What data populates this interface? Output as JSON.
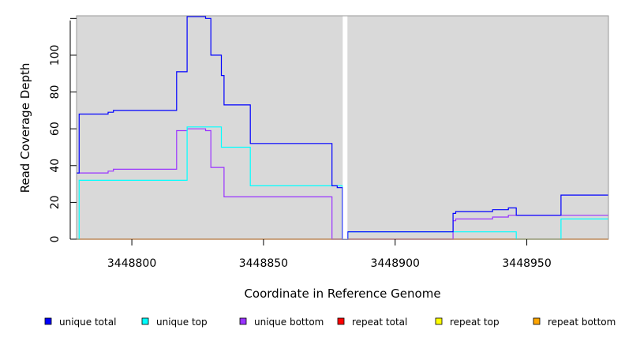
{
  "chart_data": {
    "type": "line",
    "title": "",
    "xlabel": "Coordinate in Reference Genome",
    "ylabel": "Read Coverage Depth",
    "xlim": [
      3448779,
      3448981
    ],
    "ylim": [
      0,
      121
    ],
    "x_ticks": [
      3448800,
      3448850,
      3448900,
      3448950
    ],
    "x_tick_labels": [
      "3448800",
      "3448850",
      "3448900",
      "3448950"
    ],
    "y_ticks": [
      0,
      20,
      40,
      60,
      80,
      100
    ],
    "y_tick_labels": [
      "0",
      "20",
      "40",
      "60",
      "80",
      "100"
    ],
    "gap_marker": 3448881,
    "grid": false,
    "legend_position": "bottom",
    "colors": {
      "background": "#d9d9d9",
      "unique_total": "#0000ff",
      "unique_top": "#00ffff",
      "unique_bottom": "#9933ff",
      "repeat_total": "#ff0000",
      "repeat_top": "#ffff00",
      "repeat_bottom": "#ffa500"
    },
    "series": [
      {
        "name": "unique total",
        "color": "#0000ff",
        "x": [
          3448779,
          3448780,
          3448780,
          3448791,
          3448791,
          3448793,
          3448793,
          3448796,
          3448796,
          3448817,
          3448817,
          3448821,
          3448821,
          3448828,
          3448828,
          3448830,
          3448830,
          3448834,
          3448834,
          3448835,
          3448835,
          3448845,
          3448845,
          3448876,
          3448876,
          3448878,
          3448878,
          3448880,
          3448880,
          3448882,
          3448882,
          3448922,
          3448922,
          3448923,
          3448923,
          3448937,
          3448937,
          3448943,
          3448943,
          3448946,
          3448946,
          3448963,
          3448963,
          3448981
        ],
        "y": [
          36,
          36,
          68,
          68,
          69,
          69,
          70,
          70,
          70,
          70,
          91,
          91,
          121,
          121,
          120,
          120,
          100,
          100,
          89,
          89,
          73,
          73,
          52,
          52,
          29,
          29,
          28,
          28,
          0,
          0,
          4,
          4,
          14,
          14,
          15,
          15,
          16,
          16,
          17,
          17,
          13,
          13,
          24,
          24
        ]
      },
      {
        "name": "unique top",
        "color": "#00ffff",
        "x": [
          3448779,
          3448780,
          3448780,
          3448821,
          3448821,
          3448834,
          3448834,
          3448845,
          3448845,
          3448876,
          3448876,
          3448880,
          3448880,
          3448882,
          3448882,
          3448922,
          3448922,
          3448946,
          3448946,
          3448963,
          3448963,
          3448981
        ],
        "y": [
          0,
          0,
          32,
          32,
          61,
          61,
          50,
          50,
          29,
          29,
          29,
          29,
          0,
          0,
          4,
          4,
          4,
          4,
          0,
          0,
          11,
          11
        ]
      },
      {
        "name": "unique bottom",
        "color": "#9933ff",
        "x": [
          3448779,
          3448791,
          3448791,
          3448793,
          3448793,
          3448796,
          3448796,
          3448817,
          3448817,
          3448821,
          3448821,
          3448828,
          3448828,
          3448830,
          3448830,
          3448835,
          3448835,
          3448876,
          3448876,
          3448922,
          3448922,
          3448923,
          3448923,
          3448937,
          3448937,
          3448943,
          3448943,
          3448981
        ],
        "y": [
          36,
          36,
          37,
          37,
          38,
          38,
          38,
          38,
          59,
          59,
          60,
          60,
          59,
          59,
          39,
          39,
          23,
          23,
          0,
          0,
          10,
          10,
          11,
          11,
          12,
          12,
          13,
          13
        ]
      },
      {
        "name": "repeat total",
        "color": "#ff0000",
        "x": [
          3448779,
          3448981
        ],
        "y": [
          0,
          0
        ]
      },
      {
        "name": "repeat top",
        "color": "#ffff00",
        "x": [
          3448779,
          3448981
        ],
        "y": [
          0,
          0
        ]
      },
      {
        "name": "repeat bottom",
        "color": "#ffa500",
        "x": [
          3448779,
          3448981
        ],
        "y": [
          0,
          0
        ]
      }
    ]
  }
}
